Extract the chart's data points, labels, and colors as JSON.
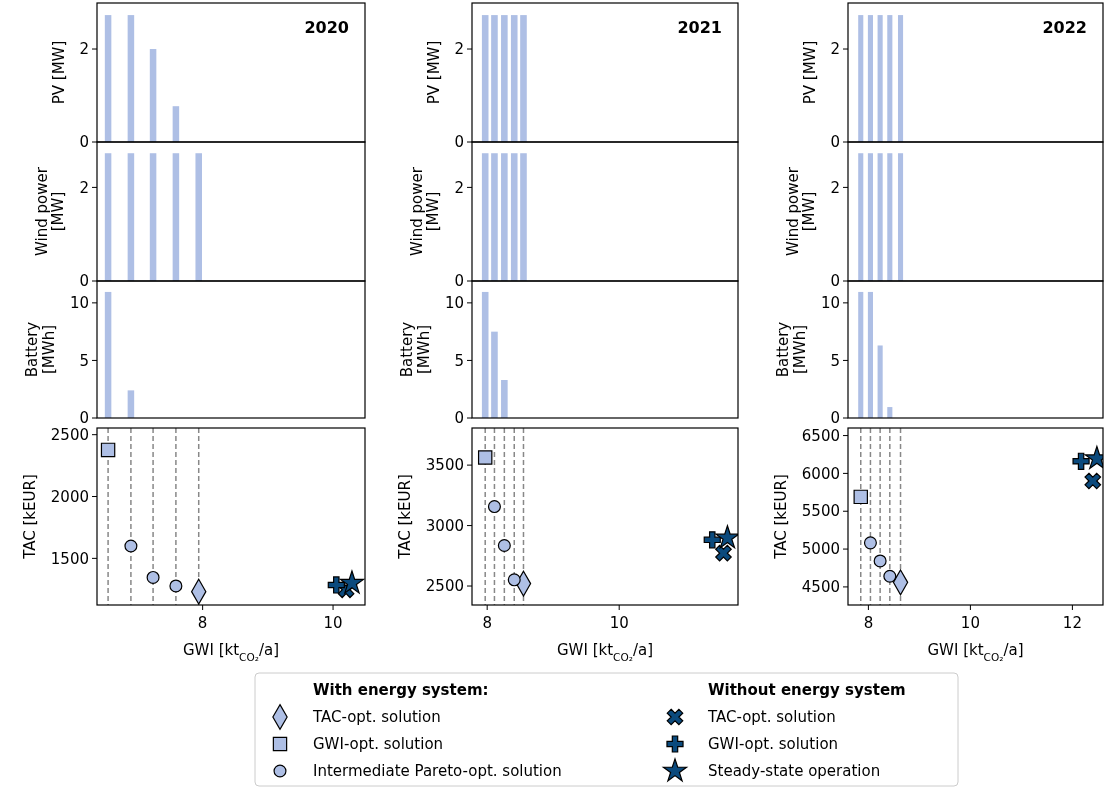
{
  "chart_data": [
    {
      "type": "bar",
      "title": "2020",
      "ylabel": "PV [MW]",
      "x": [
        6.55,
        6.9,
        7.24,
        7.59,
        7.94
      ],
      "values": [
        2.73,
        2.73,
        2.0,
        0.77,
        0
      ],
      "color": "#aebfe5",
      "xlim": [
        6.38,
        10.49
      ],
      "ylim": [
        0,
        2.99
      ],
      "yticks": [
        0,
        2
      ],
      "tick_labels": "y"
    },
    {
      "type": "bar",
      "title": "2021",
      "ylabel": "PV [MW]",
      "x": [
        7.97,
        8.11,
        8.26,
        8.41,
        8.55
      ],
      "values": [
        2.73,
        2.73,
        2.73,
        2.73,
        2.73
      ],
      "color": "#aebfe5",
      "xlim": [
        7.77,
        11.8
      ],
      "ylim": [
        0,
        2.99
      ],
      "yticks": [
        0,
        2
      ],
      "tick_labels": "y"
    },
    {
      "type": "bar",
      "title": "2022",
      "ylabel": "PV [MW]",
      "x": [
        7.85,
        8.04,
        8.23,
        8.42,
        8.63
      ],
      "values": [
        2.73,
        2.73,
        2.73,
        2.73,
        2.73
      ],
      "color": "#aebfe5",
      "xlim": [
        7.6,
        12.6
      ],
      "ylim": [
        0,
        2.99
      ],
      "yticks": [
        0,
        2
      ],
      "tick_labels": "y"
    },
    {
      "type": "bar",
      "ylabel": "Wind power\n[MW]",
      "x": [
        6.55,
        6.9,
        7.24,
        7.59,
        7.94
      ],
      "values": [
        2.73,
        2.73,
        2.73,
        2.73,
        2.73
      ],
      "color": "#aebfe5",
      "xlim": [
        6.38,
        10.49
      ],
      "ylim": [
        0,
        2.97
      ],
      "yticks": [
        0,
        2
      ],
      "tick_labels": "y"
    },
    {
      "type": "bar",
      "ylabel": "Wind power\n[MW]",
      "x": [
        7.97,
        8.11,
        8.26,
        8.41,
        8.55
      ],
      "values": [
        2.73,
        2.73,
        2.73,
        2.73,
        2.73
      ],
      "color": "#aebfe5",
      "xlim": [
        7.77,
        11.8
      ],
      "ylim": [
        0,
        2.97
      ],
      "yticks": [
        0,
        2
      ],
      "tick_labels": "y"
    },
    {
      "type": "bar",
      "ylabel": "Wind power\n[MW]",
      "x": [
        7.85,
        8.04,
        8.23,
        8.42,
        8.63
      ],
      "values": [
        2.73,
        2.73,
        2.73,
        2.73,
        2.73
      ],
      "color": "#aebfe5",
      "xlim": [
        7.6,
        12.6
      ],
      "ylim": [
        0,
        2.97
      ],
      "yticks": [
        0,
        2
      ],
      "tick_labels": "y"
    },
    {
      "type": "bar",
      "ylabel": "Battery\n[MWh]",
      "x": [
        6.55,
        6.9,
        7.24,
        7.59,
        7.94
      ],
      "values": [
        10.95,
        2.4,
        0,
        0,
        0
      ],
      "color": "#aebfe5",
      "xlim": [
        6.38,
        10.49
      ],
      "ylim": [
        0,
        11.9
      ],
      "yticks": [
        0,
        5,
        10
      ],
      "tick_labels": "y"
    },
    {
      "type": "bar",
      "ylabel": "Battery\n[MWh]",
      "x": [
        7.97,
        8.11,
        8.26,
        8.41,
        8.55
      ],
      "values": [
        10.95,
        7.5,
        3.3,
        0,
        0
      ],
      "color": "#aebfe5",
      "xlim": [
        7.77,
        11.8
      ],
      "ylim": [
        0,
        11.9
      ],
      "yticks": [
        0,
        5,
        10
      ],
      "tick_labels": "y"
    },
    {
      "type": "bar",
      "ylabel": "Battery\n[MWh]",
      "x": [
        7.85,
        8.04,
        8.23,
        8.42,
        8.63
      ],
      "values": [
        10.95,
        10.95,
        6.3,
        0.95,
        0
      ],
      "color": "#aebfe5",
      "xlim": [
        7.6,
        12.6
      ],
      "ylim": [
        0,
        11.9
      ],
      "yticks": [
        0,
        5,
        10
      ],
      "tick_labels": "y"
    },
    {
      "type": "scatter",
      "xlabel": "GWI [kt$_{CO₂}$/a]",
      "ylabel": "TAC [kEUR]",
      "xlim": [
        6.38,
        10.49
      ],
      "ylim": [
        1123,
        2554
      ],
      "xticks": [
        8,
        10
      ],
      "yticks": [
        1500,
        2000,
        2500
      ],
      "ref_lines": [
        {
          "axis": "x",
          "value": 6.55,
          "color": "#888888",
          "line_style": "dashed"
        },
        {
          "axis": "x",
          "value": 6.9,
          "color": "#888888",
          "line_style": "dashed"
        },
        {
          "axis": "x",
          "value": 7.24,
          "color": "#888888",
          "line_style": "dashed"
        },
        {
          "axis": "x",
          "value": 7.59,
          "color": "#888888",
          "line_style": "dashed"
        },
        {
          "axis": "x",
          "value": 7.94,
          "color": "#888888",
          "line_style": "dashed"
        }
      ],
      "series": [
        {
          "color": "#aebfe5",
          "marker": "diamond",
          "x": [
            7.94
          ],
          "values": [
            1231
          ]
        },
        {
          "color": "#aebfe5",
          "marker": "square",
          "x": [
            6.55
          ],
          "values": [
            2377
          ]
        },
        {
          "color": "#aebfe5",
          "marker": "circle",
          "x": [
            6.9,
            7.24,
            7.59
          ],
          "values": [
            1600,
            1346,
            1277
          ]
        },
        {
          "color": "#0b4a7d",
          "marker": "x",
          "x": [
            10.2
          ],
          "values": [
            1246
          ]
        },
        {
          "color": "#0b4a7d",
          "marker": "cross",
          "x": [
            10.05
          ],
          "values": [
            1285
          ]
        },
        {
          "color": "#0b4a7d",
          "marker": "star",
          "x": [
            10.29
          ],
          "values": [
            1300
          ]
        }
      ]
    },
    {
      "type": "scatter",
      "xlabel": "GWI [kt$_{CO₂}$/a]",
      "ylabel": "TAC [kEUR]",
      "xlim": [
        7.77,
        11.8
      ],
      "ylim": [
        2343,
        3807
      ],
      "xticks": [
        8,
        10
      ],
      "yticks": [
        2500,
        3000,
        3500
      ],
      "legend": "bottom",
      "annotations": [
        "With energy system:",
        "Without energy system"
      ],
      "ref_lines": [
        {
          "axis": "x",
          "value": 7.97,
          "color": "#888888",
          "line_style": "dashed"
        },
        {
          "axis": "x",
          "value": 8.11,
          "color": "#888888",
          "line_style": "dashed"
        },
        {
          "axis": "x",
          "value": 8.26,
          "color": "#888888",
          "line_style": "dashed"
        },
        {
          "axis": "x",
          "value": 8.41,
          "color": "#888888",
          "line_style": "dashed"
        },
        {
          "axis": "x",
          "value": 8.55,
          "color": "#888888",
          "line_style": "dashed"
        }
      ],
      "series": [
        {
          "name": "TAC-opt. solution",
          "color": "#aebfe5",
          "marker": "diamond",
          "x": [
            8.55
          ],
          "values": [
            2520
          ]
        },
        {
          "name": "GWI-opt. solution",
          "color": "#aebfe5",
          "marker": "square",
          "x": [
            7.97
          ],
          "values": [
            3563
          ]
        },
        {
          "name": "Intermediate Pareto-opt. solution",
          "color": "#aebfe5",
          "marker": "circle",
          "x": [
            8.11,
            8.26,
            8.41
          ],
          "values": [
            3157,
            2835,
            2551
          ]
        },
        {
          "name": "TAC-opt. solution",
          "color": "#0b4a7d",
          "marker": "x",
          "x": [
            11.58
          ],
          "values": [
            2772
          ]
        },
        {
          "name": "GWI-opt. solution",
          "color": "#0b4a7d",
          "marker": "cross",
          "x": [
            11.41
          ],
          "values": [
            2882
          ]
        },
        {
          "name": "Steady-state operation",
          "color": "#0b4a7d",
          "marker": "star",
          "x": [
            11.64
          ],
          "values": [
            2898
          ]
        }
      ]
    },
    {
      "type": "scatter",
      "xlabel": "GWI [kt$_{CO₂}$/a]",
      "ylabel": "TAC [kEUR]",
      "xlim": [
        7.6,
        12.6
      ],
      "ylim": [
        4261,
        6600
      ],
      "xticks": [
        8,
        10,
        12
      ],
      "yticks": [
        4500,
        5000,
        5500,
        6000,
        6500
      ],
      "ref_lines": [
        {
          "axis": "x",
          "value": 7.85,
          "color": "#888888",
          "line_style": "dashed"
        },
        {
          "axis": "x",
          "value": 8.04,
          "color": "#888888",
          "line_style": "dashed"
        },
        {
          "axis": "x",
          "value": 8.23,
          "color": "#888888",
          "line_style": "dashed"
        },
        {
          "axis": "x",
          "value": 8.42,
          "color": "#888888",
          "line_style": "dashed"
        },
        {
          "axis": "x",
          "value": 8.63,
          "color": "#888888",
          "line_style": "dashed"
        }
      ],
      "series": [
        {
          "color": "#aebfe5",
          "marker": "diamond",
          "x": [
            8.63
          ],
          "values": [
            4560
          ]
        },
        {
          "color": "#aebfe5",
          "marker": "square",
          "x": [
            7.85
          ],
          "values": [
            5690
          ]
        },
        {
          "color": "#aebfe5",
          "marker": "circle",
          "x": [
            8.04,
            8.23,
            8.42
          ],
          "values": [
            5082,
            4843,
            4641
          ]
        },
        {
          "color": "#0b4a7d",
          "marker": "x",
          "x": [
            12.4
          ],
          "values": [
            5900
          ]
        },
        {
          "color": "#0b4a7d",
          "marker": "cross",
          "x": [
            12.17
          ],
          "values": [
            6160
          ]
        },
        {
          "color": "#0b4a7d",
          "marker": "star",
          "x": [
            12.48
          ],
          "values": [
            6195
          ]
        }
      ]
    }
  ]
}
